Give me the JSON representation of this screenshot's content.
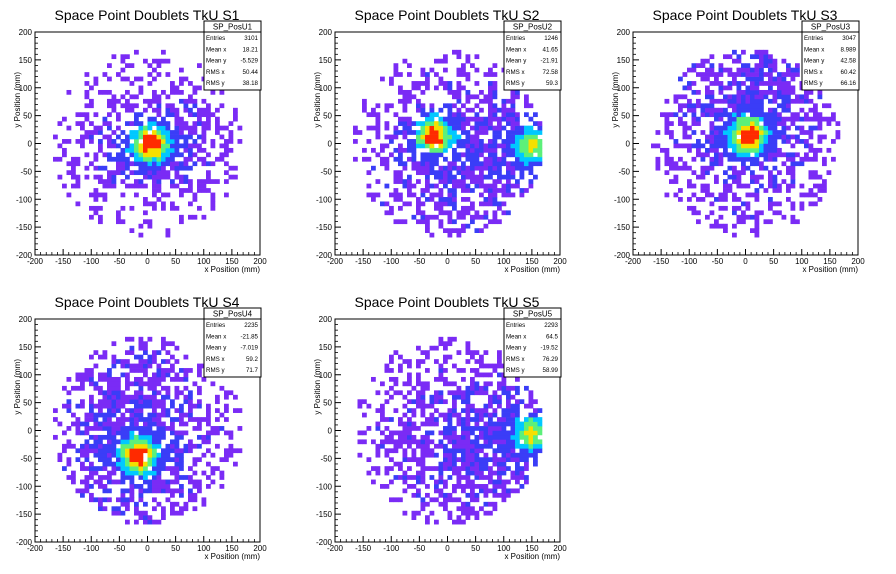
{
  "chart_data": [
    {
      "type": "heatmap",
      "title": "Space Point Doublets TkU S1",
      "xlabel": "x Position (mm)",
      "ylabel": "y Position (mm)",
      "xlim": [
        -200,
        200
      ],
      "ylim": [
        -200,
        200
      ],
      "xticks": [
        -200,
        -150,
        -100,
        -50,
        0,
        50,
        100,
        150,
        200
      ],
      "yticks": [
        -200,
        -150,
        -100,
        -50,
        0,
        50,
        100,
        150,
        200
      ],
      "stats": {
        "name": "SP_PosU1",
        "rows": [
          [
            "Entries",
            "3101"
          ],
          [
            "Mean x",
            "18.21"
          ],
          [
            "Mean y",
            "-5.529"
          ],
          [
            "RMS x",
            "50.44"
          ],
          [
            "RMS y",
            "38.18"
          ]
        ]
      },
      "hotspots": [
        {
          "x": 5,
          "y": 0,
          "level": "high"
        }
      ],
      "colormap": [
        "#7a2bf5",
        "#3a3df7",
        "#00c8ff",
        "#5cf07a",
        "#f5e000",
        "#ff2a00"
      ]
    },
    {
      "type": "heatmap",
      "title": "Space Point Doublets TkU S2",
      "xlabel": "x Position (mm)",
      "ylabel": "y Position (mm)",
      "xlim": [
        -200,
        200
      ],
      "ylim": [
        -200,
        200
      ],
      "xticks": [
        -200,
        -150,
        -100,
        -50,
        0,
        50,
        100,
        150,
        200
      ],
      "yticks": [
        -200,
        -150,
        -100,
        -50,
        0,
        50,
        100,
        150,
        200
      ],
      "stats": {
        "name": "SP_PosU2",
        "rows": [
          [
            "Entries",
            "1246"
          ],
          [
            "Mean x",
            "41.65"
          ],
          [
            "Mean y",
            "-21.91"
          ],
          [
            "RMS x",
            "72.58"
          ],
          [
            "RMS y",
            "59.3"
          ]
        ]
      },
      "hotspots": [
        {
          "x": -25,
          "y": 15,
          "level": "high"
        },
        {
          "x": 150,
          "y": -5,
          "level": "medium"
        }
      ],
      "colormap": [
        "#7a2bf5",
        "#3a3df7",
        "#00c8ff",
        "#5cf07a",
        "#f5e000",
        "#ff2a00"
      ]
    },
    {
      "type": "heatmap",
      "title": "Space Point Doublets TkU S3",
      "xlabel": "x Position (mm)",
      "ylabel": "y Position (mm)",
      "xlim": [
        -200,
        200
      ],
      "ylim": [
        -200,
        200
      ],
      "xticks": [
        -200,
        -150,
        -100,
        -50,
        0,
        50,
        100,
        150,
        200
      ],
      "yticks": [
        -200,
        -150,
        -100,
        -50,
        0,
        50,
        100,
        150,
        200
      ],
      "stats": {
        "name": "SP_PosU3",
        "rows": [
          [
            "Entries",
            "3047"
          ],
          [
            "Mean x",
            "8.989"
          ],
          [
            "Mean y",
            "42.58"
          ],
          [
            "RMS x",
            "60.42"
          ],
          [
            "RMS y",
            "66.16"
          ]
        ]
      },
      "hotspots": [
        {
          "x": 5,
          "y": 15,
          "level": "high"
        }
      ],
      "colormap": [
        "#7a2bf5",
        "#3a3df7",
        "#00c8ff",
        "#5cf07a",
        "#f5e000",
        "#ff2a00"
      ]
    },
    {
      "type": "heatmap",
      "title": "Space Point Doublets TkU S4",
      "xlabel": "x Position (mm)",
      "ylabel": "y Position (mm)",
      "xlim": [
        -200,
        200
      ],
      "ylim": [
        -200,
        200
      ],
      "xticks": [
        -200,
        -150,
        -100,
        -50,
        0,
        50,
        100,
        150,
        200
      ],
      "yticks": [
        -200,
        -150,
        -100,
        -50,
        0,
        50,
        100,
        150,
        200
      ],
      "stats": {
        "name": "SP_PosU4",
        "rows": [
          [
            "Entries",
            "2235"
          ],
          [
            "Mean x",
            "-21.85"
          ],
          [
            "Mean y",
            "-7.019"
          ],
          [
            "RMS x",
            "59.2"
          ],
          [
            "RMS y",
            "71.7"
          ]
        ]
      },
      "hotspots": [
        {
          "x": -15,
          "y": -45,
          "level": "high"
        }
      ],
      "colormap": [
        "#7a2bf5",
        "#3a3df7",
        "#00c8ff",
        "#5cf07a",
        "#f5e000",
        "#ff2a00"
      ]
    },
    {
      "type": "heatmap",
      "title": "Space Point Doublets TkU S5",
      "xlabel": "x Position (mm)",
      "ylabel": "y Position (mm)",
      "xlim": [
        -200,
        200
      ],
      "ylim": [
        -200,
        200
      ],
      "xticks": [
        -200,
        -150,
        -100,
        -50,
        0,
        50,
        100,
        150,
        200
      ],
      "yticks": [
        -200,
        -150,
        -100,
        -50,
        0,
        50,
        100,
        150,
        200
      ],
      "stats": {
        "name": "SP_PosU5",
        "rows": [
          [
            "Entries",
            "2293"
          ],
          [
            "Mean x",
            "64.5"
          ],
          [
            "Mean y",
            "-19.52"
          ],
          [
            "RMS x",
            "76.29"
          ],
          [
            "RMS y",
            "58.99"
          ]
        ]
      },
      "hotspots": [
        {
          "x": 150,
          "y": -5,
          "level": "medium"
        }
      ],
      "colormap": [
        "#7a2bf5",
        "#3a3df7",
        "#00c8ff",
        "#5cf07a",
        "#f5e000",
        "#ff2a00"
      ]
    }
  ]
}
